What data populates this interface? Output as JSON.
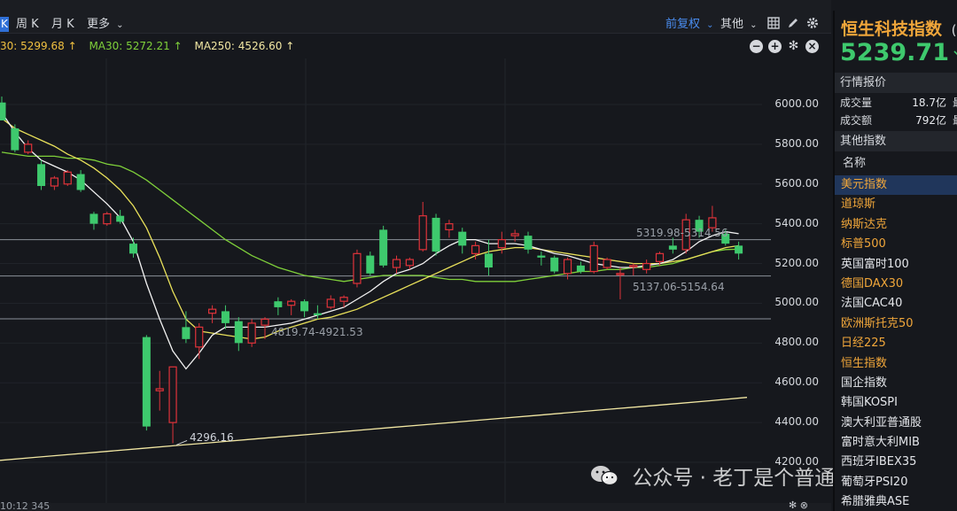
{
  "toolbar": {
    "period_k": "K",
    "periods": [
      "周 K",
      "月 K"
    ],
    "more": "更多",
    "adjust": "前复权",
    "other": "其他"
  },
  "ma_legend": {
    "ma_cut": "30: 5299.68 ↑",
    "ma30": "MA30: 5272.21 ↑",
    "ma250": "MA250: 4526.60 ↑"
  },
  "colors": {
    "up": "#e0333a",
    "down": "#3ec96d",
    "ma_white": "#f2f2f2",
    "ma_yellow": "#e8e05a",
    "ma_green": "#7fd03a",
    "ma250": "#f2e7a3",
    "accent_blue": "#4a8df0",
    "accent_orange": "#f0a63a"
  },
  "chart_data": {
    "type": "candlestick",
    "y_ticks": [
      "6000.00",
      "5800.00",
      "5600.00",
      "5400.00",
      "5200.00",
      "5000.00",
      "4800.00",
      "4600.00",
      "4400.00",
      "4200.00"
    ],
    "ylim": [
      4200,
      6000
    ],
    "candles": [
      {
        "o": 6010,
        "h": 6040,
        "l": 5920,
        "c": 5920
      },
      {
        "o": 5880,
        "h": 5900,
        "l": 5760,
        "c": 5770
      },
      {
        "o": 5760,
        "h": 5820,
        "l": 5750,
        "c": 5800
      },
      {
        "o": 5700,
        "h": 5720,
        "l": 5570,
        "c": 5590
      },
      {
        "o": 5590,
        "h": 5640,
        "l": 5570,
        "c": 5630
      },
      {
        "o": 5600,
        "h": 5670,
        "l": 5590,
        "c": 5660
      },
      {
        "o": 5650,
        "h": 5670,
        "l": 5560,
        "c": 5570
      },
      {
        "o": 5450,
        "h": 5460,
        "l": 5370,
        "c": 5400
      },
      {
        "o": 5400,
        "h": 5460,
        "l": 5390,
        "c": 5450
      },
      {
        "o": 5440,
        "h": 5470,
        "l": 5400,
        "c": 5410
      },
      {
        "o": 5300,
        "h": 5330,
        "l": 5230,
        "c": 5250
      },
      {
        "o": 4830,
        "h": 4840,
        "l": 4360,
        "c": 4380
      },
      {
        "o": 4560,
        "h": 4660,
        "l": 4460,
        "c": 4570
      },
      {
        "o": 4400,
        "h": 4680,
        "l": 4296,
        "c": 4680
      },
      {
        "o": 4880,
        "h": 4960,
        "l": 4800,
        "c": 4820
      },
      {
        "o": 4780,
        "h": 4900,
        "l": 4720,
        "c": 4880
      },
      {
        "o": 4950,
        "h": 4990,
        "l": 4900,
        "c": 4970
      },
      {
        "o": 4960,
        "h": 4990,
        "l": 4870,
        "c": 4900
      },
      {
        "o": 4910,
        "h": 4930,
        "l": 4760,
        "c": 4800
      },
      {
        "o": 4800,
        "h": 4920,
        "l": 4780,
        "c": 4900
      },
      {
        "o": 4890,
        "h": 4930,
        "l": 4820,
        "c": 4920
      },
      {
        "o": 5010,
        "h": 5030,
        "l": 4940,
        "c": 4980
      },
      {
        "o": 4990,
        "h": 5020,
        "l": 4940,
        "c": 5010
      },
      {
        "o": 5010,
        "h": 5020,
        "l": 4930,
        "c": 4960
      },
      {
        "o": 4950,
        "h": 4990,
        "l": 4920,
        "c": 4940
      },
      {
        "o": 4980,
        "h": 5040,
        "l": 4970,
        "c": 5020
      },
      {
        "o": 5010,
        "h": 5040,
        "l": 4980,
        "c": 5030
      },
      {
        "o": 5100,
        "h": 5270,
        "l": 5080,
        "c": 5250
      },
      {
        "o": 5240,
        "h": 5260,
        "l": 5140,
        "c": 5150
      },
      {
        "o": 5370,
        "h": 5390,
        "l": 5180,
        "c": 5190
      },
      {
        "o": 5180,
        "h": 5240,
        "l": 5150,
        "c": 5220
      },
      {
        "o": 5190,
        "h": 5230,
        "l": 5170,
        "c": 5220
      },
      {
        "o": 5270,
        "h": 5510,
        "l": 5260,
        "c": 5440
      },
      {
        "o": 5430,
        "h": 5450,
        "l": 5240,
        "c": 5260
      },
      {
        "o": 5370,
        "h": 5420,
        "l": 5330,
        "c": 5400
      },
      {
        "o": 5360,
        "h": 5380,
        "l": 5250,
        "c": 5290
      },
      {
        "o": 5250,
        "h": 5310,
        "l": 5220,
        "c": 5290
      },
      {
        "o": 5250,
        "h": 5320,
        "l": 5140,
        "c": 5180
      },
      {
        "o": 5280,
        "h": 5360,
        "l": 5250,
        "c": 5320
      },
      {
        "o": 5340,
        "h": 5370,
        "l": 5310,
        "c": 5350
      },
      {
        "o": 5340,
        "h": 5360,
        "l": 5250,
        "c": 5270
      },
      {
        "o": 5240,
        "h": 5260,
        "l": 5190,
        "c": 5230
      },
      {
        "o": 5230,
        "h": 5240,
        "l": 5150,
        "c": 5160
      },
      {
        "o": 5150,
        "h": 5230,
        "l": 5120,
        "c": 5220
      },
      {
        "o": 5190,
        "h": 5210,
        "l": 5150,
        "c": 5160
      },
      {
        "o": 5160,
        "h": 5310,
        "l": 5150,
        "c": 5290
      },
      {
        "o": 5180,
        "h": 5230,
        "l": 5170,
        "c": 5220
      },
      {
        "o": 5150,
        "h": 5180,
        "l": 5020,
        "c": 5150
      },
      {
        "o": 5190,
        "h": 5200,
        "l": 5140,
        "c": 5190
      },
      {
        "o": 5170,
        "h": 5220,
        "l": 5150,
        "c": 5200
      },
      {
        "o": 5210,
        "h": 5260,
        "l": 5190,
        "c": 5250
      },
      {
        "o": 5290,
        "h": 5330,
        "l": 5250,
        "c": 5270
      },
      {
        "o": 5270,
        "h": 5450,
        "l": 5250,
        "c": 5420
      },
      {
        "o": 5420,
        "h": 5440,
        "l": 5330,
        "c": 5360
      },
      {
        "o": 5380,
        "h": 5490,
        "l": 5360,
        "c": 5430
      },
      {
        "o": 5350,
        "h": 5370,
        "l": 5290,
        "c": 5300
      },
      {
        "o": 5290,
        "h": 5310,
        "l": 5220,
        "c": 5250
      }
    ],
    "ma5": [
      5960,
      5860,
      5780,
      5720,
      5690,
      5660,
      5620,
      5560,
      5500,
      5430,
      5310,
      5100,
      4920,
      4760,
      4670,
      4750,
      4840,
      4880,
      4880,
      4880,
      4880,
      4890,
      4900,
      4920,
      4940,
      4960,
      4980,
      5020,
      5060,
      5110,
      5150,
      5170,
      5200,
      5250,
      5290,
      5320,
      5320,
      5300,
      5300,
      5300,
      5290,
      5270,
      5250,
      5240,
      5220,
      5200,
      5190,
      5180,
      5180,
      5190,
      5200,
      5220,
      5260,
      5310,
      5340,
      5360,
      5350
    ],
    "ma10": [
      5930,
      5880,
      5850,
      5820,
      5790,
      5750,
      5720,
      5680,
      5630,
      5570,
      5490,
      5380,
      5230,
      5060,
      4920,
      4860,
      4850,
      4840,
      4830,
      4820,
      4830,
      4860,
      4880,
      4900,
      4920,
      4930,
      4950,
      4970,
      5000,
      5030,
      5060,
      5090,
      5120,
      5150,
      5180,
      5210,
      5240,
      5260,
      5270,
      5280,
      5280,
      5270,
      5260,
      5250,
      5240,
      5230,
      5220,
      5210,
      5200,
      5200,
      5200,
      5210,
      5220,
      5240,
      5260,
      5280,
      5290
    ],
    "ma30": [
      5760,
      5750,
      5740,
      5740,
      5740,
      5730,
      5730,
      5720,
      5700,
      5690,
      5660,
      5620,
      5570,
      5520,
      5470,
      5420,
      5370,
      5320,
      5280,
      5240,
      5210,
      5180,
      5160,
      5140,
      5130,
      5120,
      5110,
      5120,
      5130,
      5140,
      5140,
      5140,
      5140,
      5130,
      5120,
      5120,
      5110,
      5110,
      5110,
      5110,
      5120,
      5130,
      5140,
      5150,
      5160,
      5160,
      5170,
      5170,
      5180,
      5180,
      5190,
      5200,
      5220,
      5240,
      5260,
      5270,
      5272
    ],
    "ma250": [
      4210,
      4225,
      4240,
      4255,
      4270,
      4285,
      4300,
      4315,
      4330,
      4345,
      4360,
      4375,
      4390,
      4405,
      4420,
      4435,
      4450,
      4465,
      4480,
      4495,
      4510,
      4526.6
    ],
    "levels": [
      5137.06,
      5319.98,
      4921.53
    ],
    "annotations": {
      "low_label": "4296.16",
      "range_high": "5319.98-5314.56",
      "range_mid": "5137.06-5154.64",
      "range_low": "4819.74-4921.53"
    }
  },
  "panel": {
    "title": "恒生科技指数",
    "title_cut": "(",
    "price": "5239.71",
    "arrow": "↘",
    "quote_section": "行情报价",
    "stats": [
      {
        "label": "成交量",
        "value": "18.7亿",
        "cut": "最"
      },
      {
        "label": "成交额",
        "value": "792亿",
        "cut": "最"
      }
    ],
    "other_section": "其他指数",
    "list_header": "名称",
    "indices": [
      {
        "name": "美元指数",
        "color": "orange",
        "selected": true
      },
      {
        "name": "道琼斯",
        "color": "orange"
      },
      {
        "name": "纳斯达克",
        "color": "orange"
      },
      {
        "name": "标普500",
        "color": "orange"
      },
      {
        "name": "英国富时100",
        "color": "white"
      },
      {
        "name": "德国DAX30",
        "color": "orange"
      },
      {
        "name": "法国CAC40",
        "color": "white"
      },
      {
        "name": "欧洲斯托克50",
        "color": "orange"
      },
      {
        "name": "日经225",
        "color": "orange"
      },
      {
        "name": "恒生指数",
        "color": "orange"
      },
      {
        "name": "国企指数",
        "color": "white"
      },
      {
        "name": "韩国KOSPI",
        "color": "white"
      },
      {
        "name": "澳大利亚普通股",
        "color": "white"
      },
      {
        "name": "富时意大利MIB",
        "color": "white"
      },
      {
        "name": "西班牙IBEX35",
        "color": "white"
      },
      {
        "name": "葡萄牙PSI20",
        "color": "white"
      },
      {
        "name": "希腊雅典ASE",
        "color": "white"
      }
    ]
  },
  "watermark": {
    "text": "公众号 · 老丁是个普通人"
  },
  "bottom": {
    "text": "10:12 345"
  }
}
